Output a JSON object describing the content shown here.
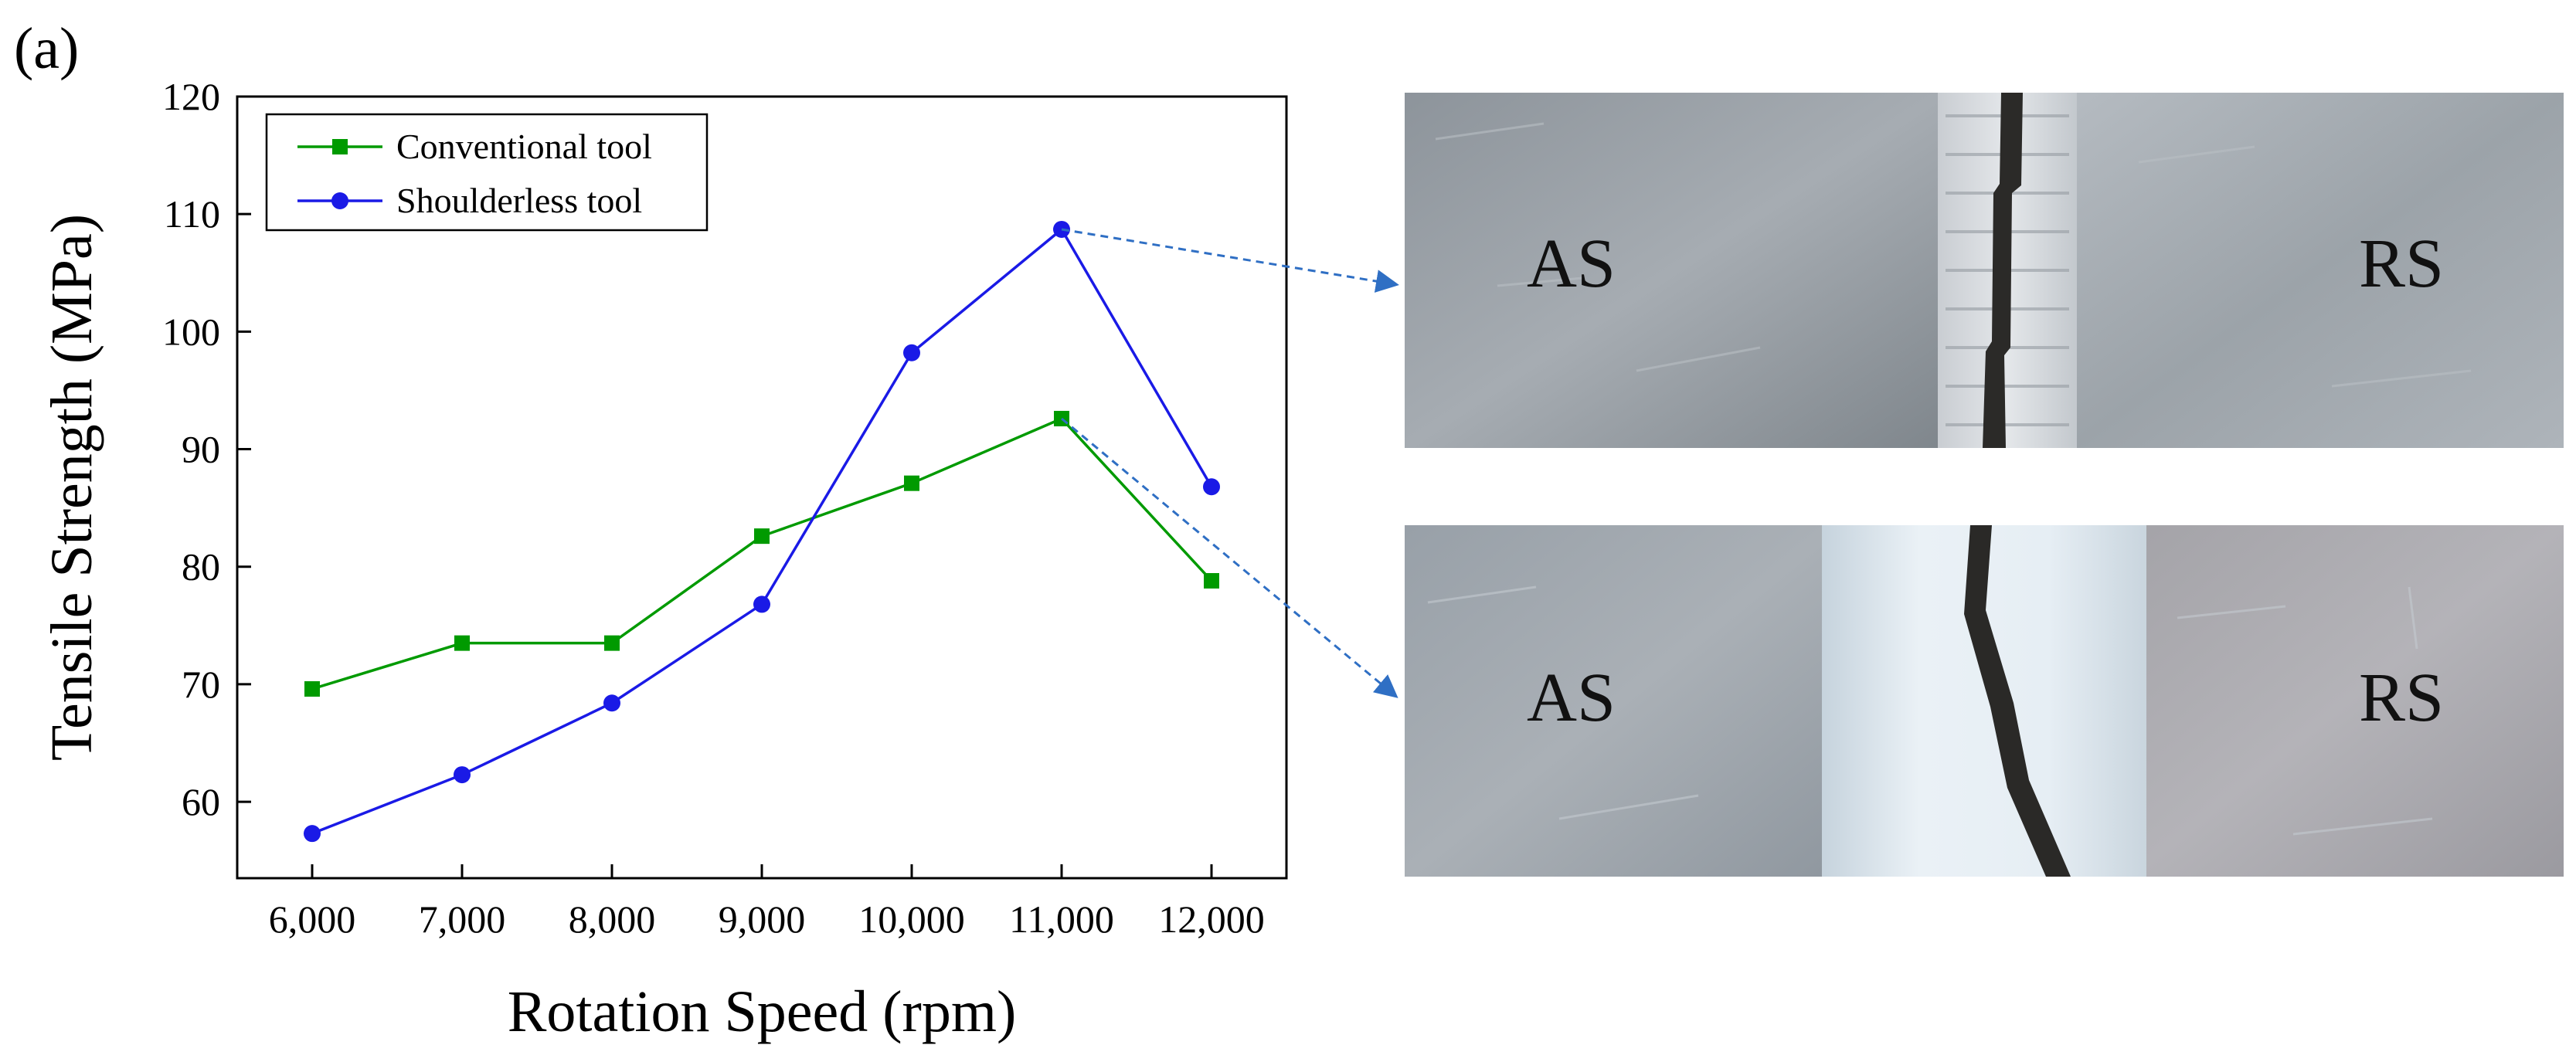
{
  "panel_label": "(a)",
  "chart_data": {
    "type": "line",
    "xlabel": "Rotation Speed (rpm)",
    "ylabel": "Tensile Strength (MPa)",
    "x": [
      6000,
      7000,
      8000,
      9000,
      10000,
      11000,
      12000
    ],
    "x_tick_labels": [
      "6,000",
      "7,000",
      "8,000",
      "9,000",
      "10,000",
      "11,000",
      "12,000"
    ],
    "y_ticks": [
      60,
      70,
      80,
      90,
      100,
      110,
      120
    ],
    "xlim": [
      5500,
      12500
    ],
    "ylim": [
      53.5,
      120
    ],
    "legend_position": "top-left",
    "series": [
      {
        "name": "Conventional tool",
        "color": "#009a00",
        "marker": "square",
        "values": [
          69.6,
          73.5,
          73.5,
          82.6,
          87.1,
          92.6,
          78.8
        ]
      },
      {
        "name": "Shoulderless tool",
        "color": "#1a1ae6",
        "marker": "circle",
        "values": [
          57.3,
          62.3,
          68.4,
          76.8,
          98.2,
          108.7,
          86.8
        ]
      }
    ]
  },
  "photos": {
    "top": {
      "left_label": "AS",
      "right_label": "RS"
    },
    "bottom": {
      "left_label": "AS",
      "right_label": "RS"
    }
  },
  "arrow_color": "#2f6fc4"
}
